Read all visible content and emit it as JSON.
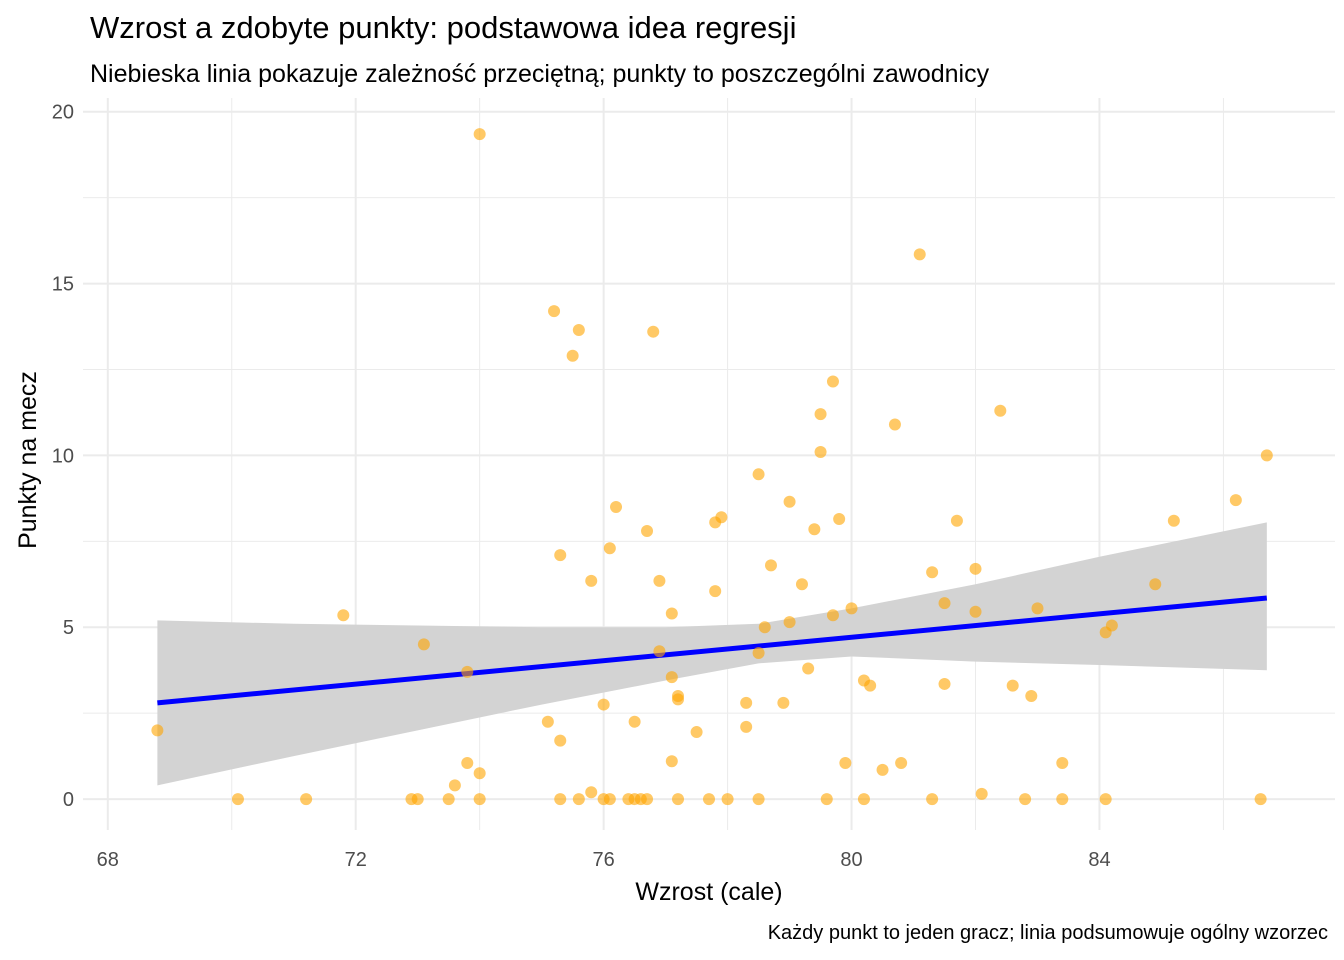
{
  "chart_data": {
    "type": "scatter",
    "title": "Wzrost a zdobyte punkty: podstawowa idea regresji",
    "subtitle": "Niebieska linia pokazuje zależność przeciętną; punkty to poszczególni zawodnicy",
    "caption": "Każdy punkt to jeden gracz; linia podsumowuje ogólny wzorzec",
    "xlabel": "Wzrost (cale)",
    "ylabel": "Punkty na mecz",
    "xlim": [
      67.6,
      87.8
    ],
    "ylim": [
      -0.9,
      20.4
    ],
    "xticks": [
      68,
      72,
      76,
      80,
      84
    ],
    "yticks": [
      0,
      5,
      10,
      15,
      20
    ],
    "grid": true,
    "colors": {
      "points": "#FFA500",
      "line": "#0000FF",
      "band": "#D3D3D3",
      "grid": "#EBEBEB"
    },
    "points": [
      [
        68.8,
        2.0
      ],
      [
        70.1,
        0.0
      ],
      [
        71.2,
        0.0
      ],
      [
        71.8,
        5.35
      ],
      [
        72.9,
        0.0
      ],
      [
        73.0,
        0.0
      ],
      [
        73.1,
        4.5
      ],
      [
        73.5,
        0.0
      ],
      [
        73.6,
        0.4
      ],
      [
        73.8,
        1.05
      ],
      [
        73.8,
        3.7
      ],
      [
        74.0,
        0.0
      ],
      [
        74.0,
        0.75
      ],
      [
        74.0,
        19.35
      ],
      [
        75.1,
        2.25
      ],
      [
        75.2,
        14.2
      ],
      [
        75.3,
        7.1
      ],
      [
        75.3,
        1.7
      ],
      [
        75.3,
        0.0
      ],
      [
        75.5,
        12.9
      ],
      [
        75.6,
        13.65
      ],
      [
        75.6,
        0.0
      ],
      [
        75.8,
        6.35
      ],
      [
        75.8,
        0.2
      ],
      [
        76.0,
        0.0
      ],
      [
        76.0,
        2.75
      ],
      [
        76.1,
        7.3
      ],
      [
        76.1,
        0.0
      ],
      [
        76.2,
        8.5
      ],
      [
        76.4,
        0.0
      ],
      [
        76.5,
        2.25
      ],
      [
        76.5,
        0.0
      ],
      [
        76.6,
        0.0
      ],
      [
        76.7,
        7.8
      ],
      [
        76.7,
        0.0
      ],
      [
        76.8,
        13.6
      ],
      [
        76.9,
        6.35
      ],
      [
        76.9,
        4.3
      ],
      [
        77.1,
        5.4
      ],
      [
        77.1,
        3.55
      ],
      [
        77.1,
        1.1
      ],
      [
        77.2,
        3.0
      ],
      [
        77.2,
        2.9
      ],
      [
        77.2,
        0.0
      ],
      [
        77.5,
        1.95
      ],
      [
        77.7,
        0.0
      ],
      [
        77.8,
        8.05
      ],
      [
        77.8,
        6.05
      ],
      [
        77.9,
        8.2
      ],
      [
        78.0,
        0.0
      ],
      [
        78.3,
        2.1
      ],
      [
        78.3,
        2.8
      ],
      [
        78.5,
        4.25
      ],
      [
        78.5,
        9.45
      ],
      [
        78.5,
        0.0
      ],
      [
        78.6,
        5.0
      ],
      [
        78.7,
        6.8
      ],
      [
        78.9,
        2.8
      ],
      [
        79.0,
        5.15
      ],
      [
        79.0,
        8.65
      ],
      [
        79.2,
        6.25
      ],
      [
        79.3,
        3.8
      ],
      [
        79.4,
        7.85
      ],
      [
        79.5,
        11.2
      ],
      [
        79.5,
        10.1
      ],
      [
        79.6,
        0.0
      ],
      [
        79.7,
        12.15
      ],
      [
        79.7,
        5.35
      ],
      [
        79.8,
        8.15
      ],
      [
        79.9,
        1.05
      ],
      [
        80.0,
        5.55
      ],
      [
        80.2,
        3.45
      ],
      [
        80.2,
        0.0
      ],
      [
        80.3,
        3.3
      ],
      [
        80.5,
        0.85
      ],
      [
        80.7,
        10.9
      ],
      [
        80.8,
        1.05
      ],
      [
        81.1,
        15.85
      ],
      [
        81.3,
        0.0
      ],
      [
        81.3,
        6.6
      ],
      [
        81.5,
        3.35
      ],
      [
        81.5,
        5.7
      ],
      [
        81.7,
        8.1
      ],
      [
        82.0,
        6.7
      ],
      [
        82.0,
        5.45
      ],
      [
        82.1,
        0.15
      ],
      [
        82.4,
        11.3
      ],
      [
        82.6,
        3.3
      ],
      [
        82.8,
        0.0
      ],
      [
        82.9,
        3.0
      ],
      [
        83.0,
        5.55
      ],
      [
        83.4,
        0.0
      ],
      [
        83.4,
        1.05
      ],
      [
        84.1,
        4.85
      ],
      [
        84.1,
        0.0
      ],
      [
        84.2,
        5.05
      ],
      [
        84.9,
        6.25
      ],
      [
        85.2,
        8.1
      ],
      [
        86.2,
        8.7
      ],
      [
        86.6,
        0.0
      ],
      [
        86.7,
        10.0
      ]
    ],
    "regression": {
      "x": [
        68.8,
        86.7
      ],
      "y": [
        2.8,
        5.85
      ]
    },
    "confidence_band": {
      "x": [
        68.8,
        71.0,
        73.0,
        75.0,
        77.0,
        78.5,
        80.0,
        82.0,
        84.0,
        86.7
      ],
      "lower": [
        0.4,
        1.25,
        2.0,
        2.75,
        3.45,
        3.95,
        4.15,
        4.0,
        3.9,
        3.75
      ],
      "upper": [
        5.2,
        5.1,
        5.05,
        5.0,
        5.0,
        5.1,
        5.55,
        6.25,
        7.05,
        8.05
      ]
    }
  }
}
